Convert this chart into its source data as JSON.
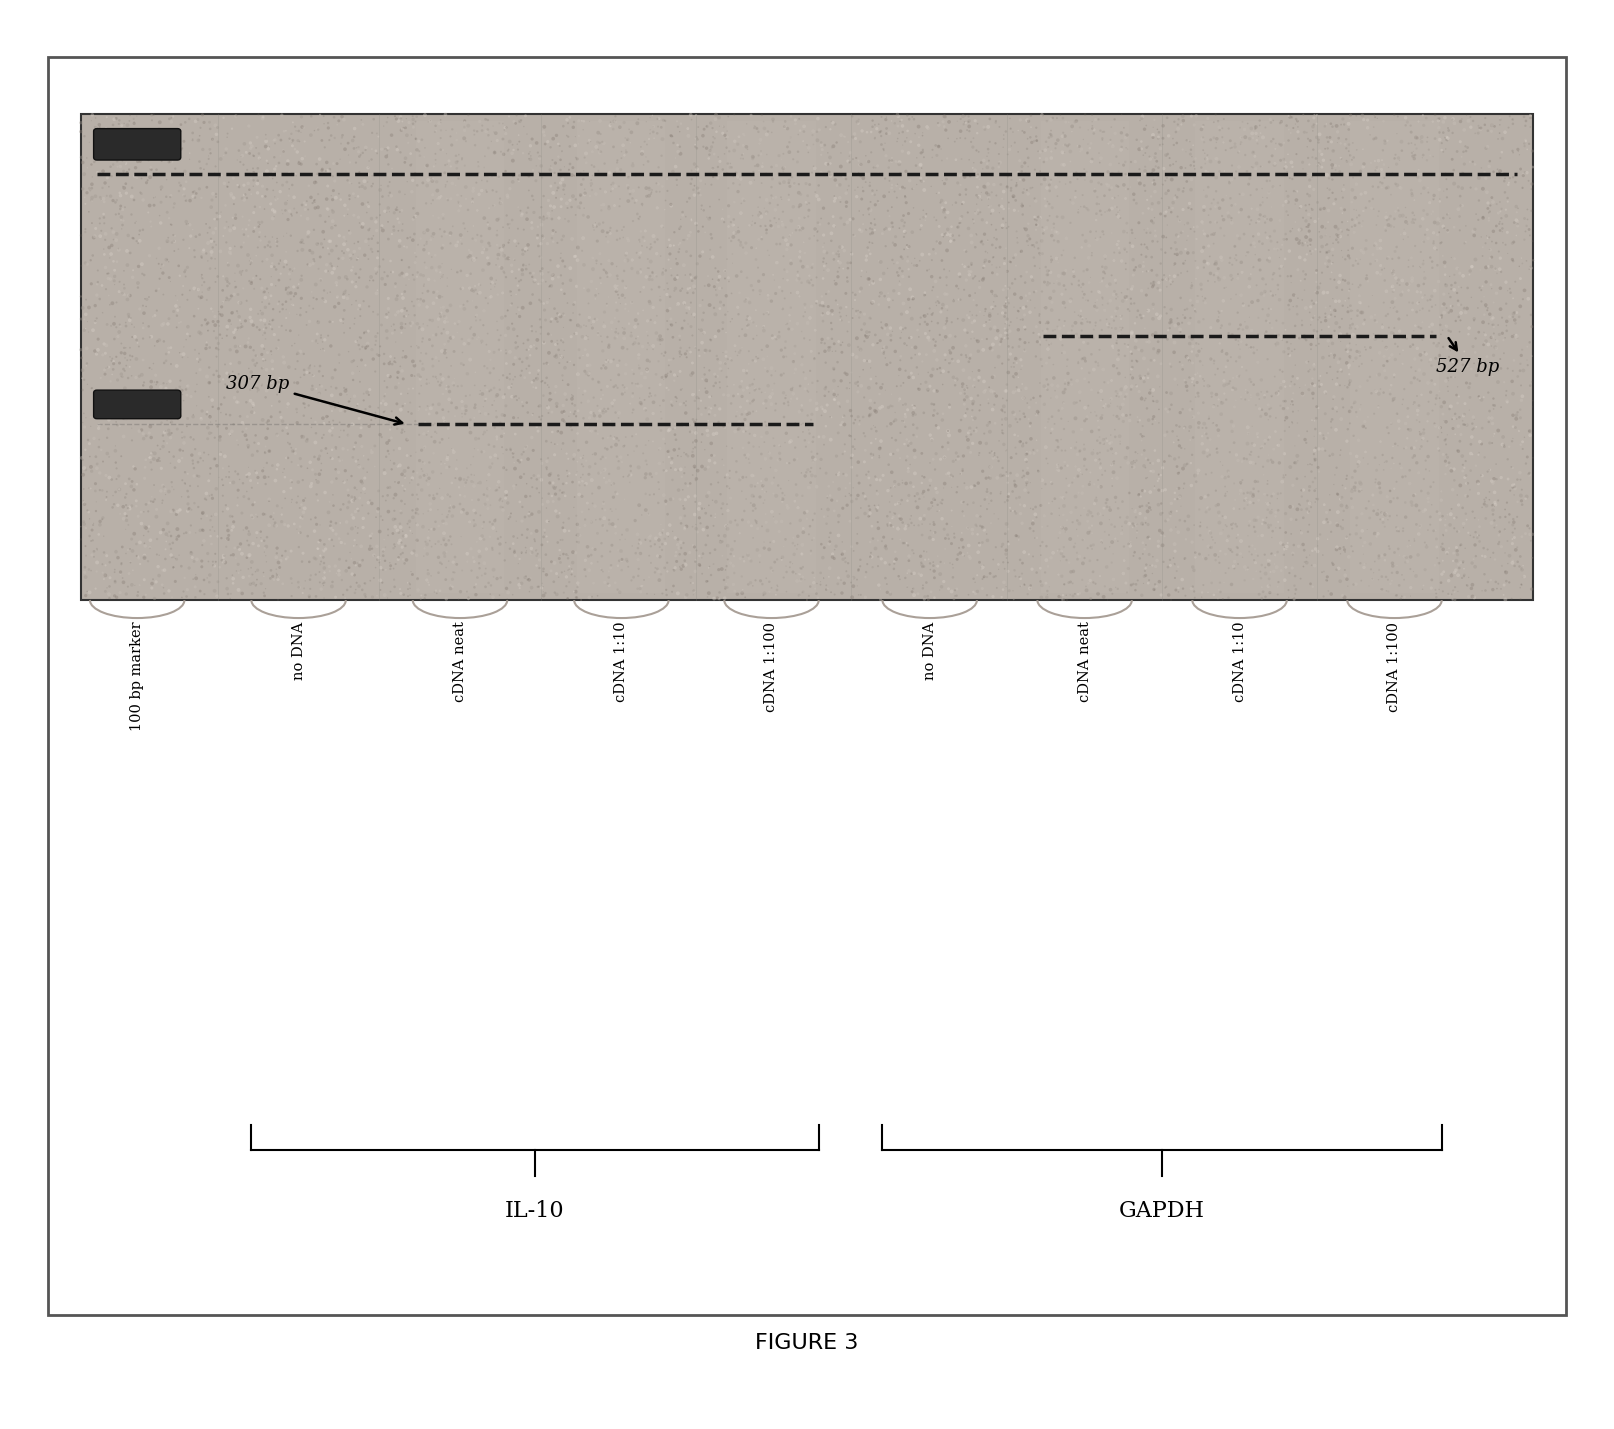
{
  "figure_width": 16.14,
  "figure_height": 14.29,
  "dpi": 100,
  "bg_color": "#ffffff",
  "gel_bg_color": "#b8b0a8",
  "label_307": "307 bp",
  "label_527": "527 bp",
  "figure_caption": "FIGURE 3",
  "lane_labels": [
    "100 bp marker",
    "no DNA",
    "cDNA neat",
    "cDNA 1:10",
    "cDNA 1:100",
    "no DNA",
    "cDNA neat",
    "cDNA 1:10",
    "cDNA 1:100"
  ],
  "group_labels": [
    "IL-10",
    "GAPDH"
  ]
}
